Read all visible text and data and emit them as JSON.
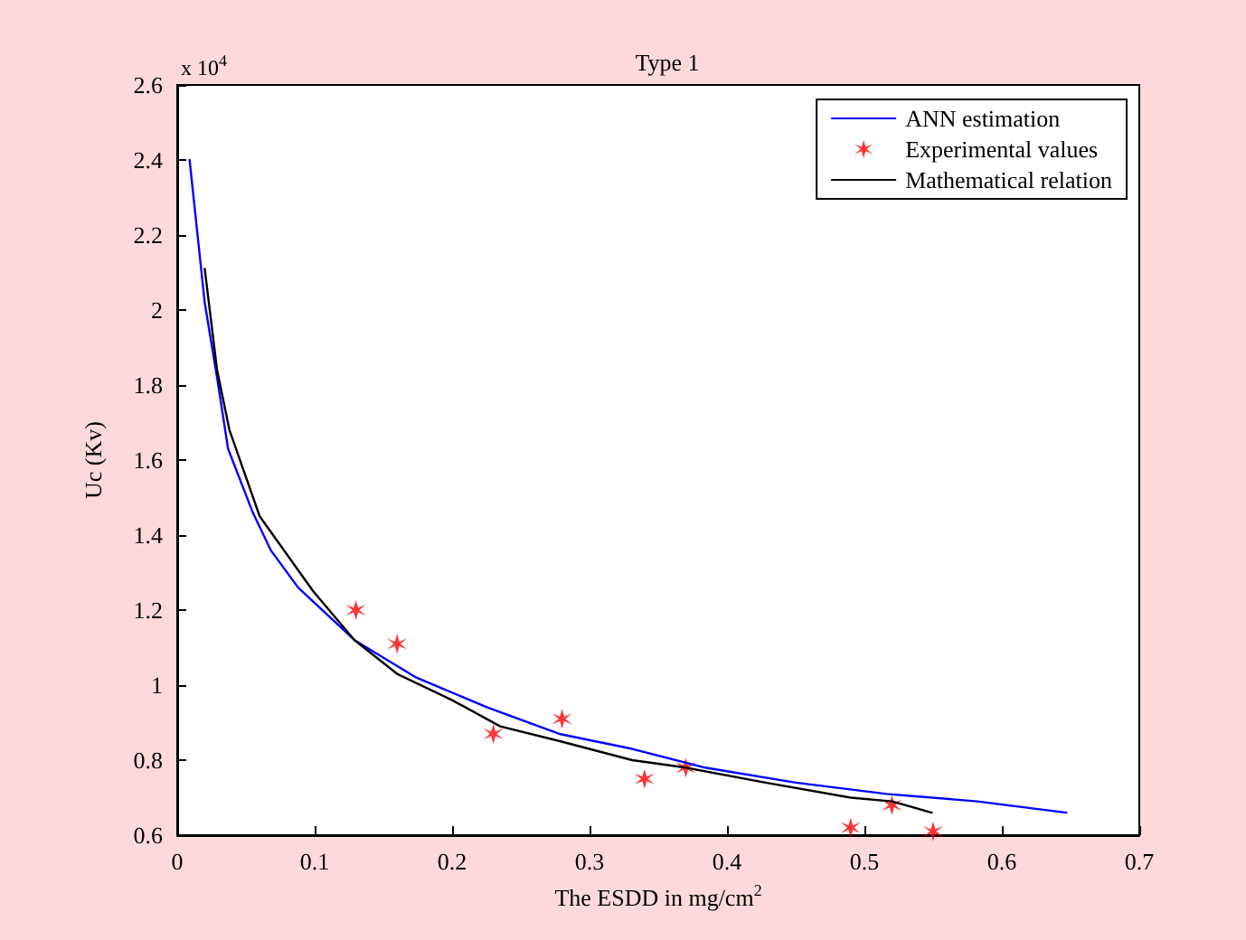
{
  "chart_data": {
    "type": "line",
    "title": "Type 1",
    "xlabel": "The ESDD in mg/cm$^{2}$",
    "ylabel": "Uc (Kv)",
    "annotations": [
      "x 10$^{4}$"
    ],
    "series": [
      {
        "name": "ANN estimation",
        "color": "#0000ff",
        "marker": "none",
        "x": [
          0.009,
          0.02,
          0.029,
          0.037,
          0.055,
          0.068,
          0.088,
          0.129,
          0.174,
          0.226,
          0.278,
          0.331,
          0.384,
          0.45,
          0.516,
          0.582,
          0.647
        ],
        "values": [
          2.4,
          2.02,
          1.82,
          1.63,
          1.46,
          1.36,
          1.26,
          1.12,
          1.02,
          0.94,
          0.87,
          0.83,
          0.78,
          0.74,
          0.71,
          0.69,
          0.66
        ]
      },
      {
        "name": "Experimental values",
        "type": "scatter",
        "color": "#ff0000",
        "marker": "cross",
        "x": [
          0.13,
          0.16,
          0.23,
          0.28,
          0.34,
          0.37,
          0.49,
          0.52,
          0.55
        ],
        "values": [
          1.2,
          1.11,
          0.87,
          0.91,
          0.75,
          0.78,
          0.62,
          0.68,
          0.61
        ]
      },
      {
        "name": "Mathematical relation",
        "color": "#000000",
        "marker": "none",
        "x": [
          0.02,
          0.029,
          0.038,
          0.06,
          0.099,
          0.129,
          0.16,
          0.2,
          0.235,
          0.279,
          0.331,
          0.37,
          0.428,
          0.49,
          0.52,
          0.549
        ],
        "values": [
          2.11,
          1.84,
          1.68,
          1.45,
          1.25,
          1.12,
          1.03,
          0.96,
          0.89,
          0.85,
          0.8,
          0.78,
          0.74,
          0.7,
          0.69,
          0.66
        ]
      }
    ],
    "xlim": [
      0,
      0.7
    ],
    "xticks": [
      0,
      0.1,
      0.2,
      0.3,
      0.4,
      0.5,
      0.6,
      0.7
    ],
    "ylim": [
      0.6,
      2.6
    ],
    "yticks": [
      0.6,
      0.8,
      1,
      1.2,
      1.4,
      1.6,
      1.8,
      2,
      2.2,
      2.4,
      2.6
    ],
    "grid": false,
    "legend": "top right"
  }
}
